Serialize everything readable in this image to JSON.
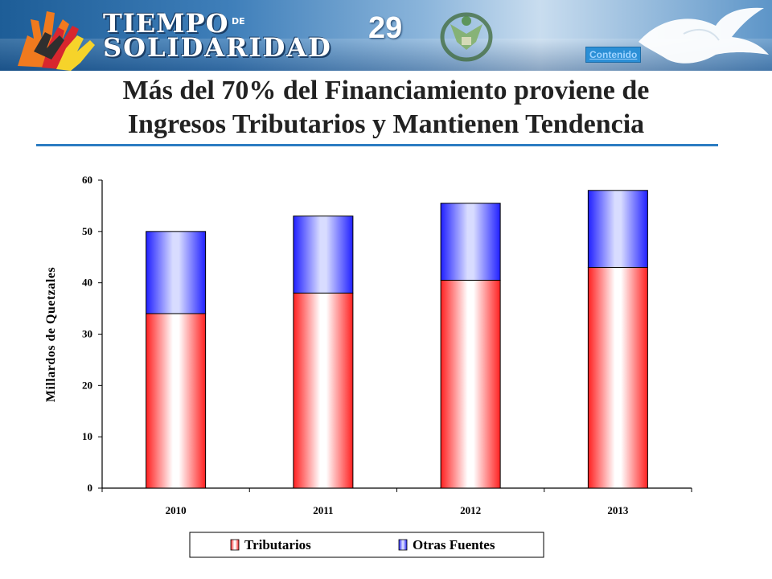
{
  "header": {
    "logo_line1": "TIEMPO",
    "logo_de": "DE",
    "logo_line2": "SOLIDARIDAD",
    "slide_number": "29",
    "contenido_link": "Contenido"
  },
  "title": {
    "line1": "Más del 70% del Financiamiento proviene de",
    "line2": "Ingresos Tributarios y Mantienen Tendencia"
  },
  "colors": {
    "tributarios": "#ff2020",
    "otras_fuentes": "#2020ff",
    "title_rule": "#2b7cc2"
  },
  "chart_data": {
    "type": "bar",
    "stacked": true,
    "categories": [
      "2010",
      "2011",
      "2012",
      "2013"
    ],
    "series": [
      {
        "name": "Tributarios",
        "values": [
          34.0,
          38.0,
          40.5,
          43.0
        ]
      },
      {
        "name": "Otras Fuentes",
        "values": [
          16.0,
          15.0,
          15.0,
          15.0
        ]
      }
    ],
    "ylabel": "Millardos de Quetzales",
    "ylim": [
      0,
      60
    ],
    "yticks": [
      "0",
      "10",
      "20",
      "30",
      "40",
      "50",
      "60"
    ],
    "grid": false,
    "legend": "bottom"
  }
}
